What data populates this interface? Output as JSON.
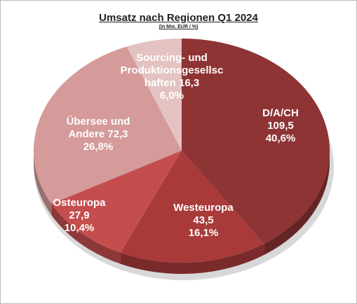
{
  "chart_data": {
    "type": "pie",
    "title": "Umsatz nach Regionen Q1 2024",
    "subtitle": "(in Mio. EUR / %)",
    "categories": [
      "D/A/CH",
      "Westeuropa",
      "Osteuropa",
      "Übersee und Andere",
      "Sourcing- und Produktionsgesellschaften"
    ],
    "values": [
      109.5,
      43.5,
      27.9,
      72.3,
      16.3
    ],
    "value_labels": [
      "109,5",
      "43,5",
      "27,9",
      "72,3",
      "16,3"
    ],
    "percentages": [
      40.6,
      16.1,
      10.4,
      26.8,
      6.0
    ],
    "percentage_labels": [
      "40,6%",
      "16,1%",
      "10,4%",
      "26,8%",
      "6,0%"
    ],
    "colors": [
      "#8e3434",
      "#a93a3a",
      "#c44e4e",
      "#d59a9a",
      "#e4c2c2"
    ]
  }
}
